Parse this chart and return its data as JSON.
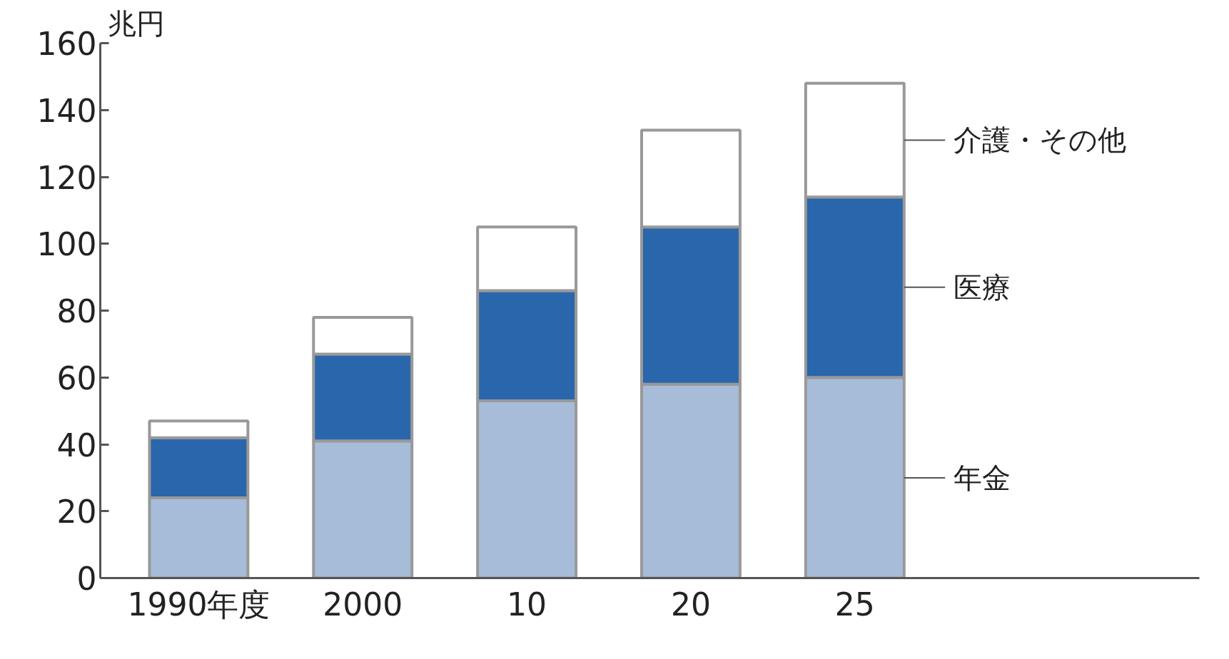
{
  "chart_data": {
    "type": "bar",
    "stacked": true,
    "ylabel": "兆円",
    "categories": [
      "1990年度",
      "2000",
      "10",
      "20",
      "25"
    ],
    "series": [
      {
        "name": "年金",
        "color": "#a7bcd8",
        "values": [
          24,
          41,
          53,
          58,
          60
        ]
      },
      {
        "name": "医療",
        "color": "#2a66ab",
        "values": [
          18,
          26,
          33,
          47,
          54
        ]
      },
      {
        "name": "介護・その他",
        "color": "#ffffff",
        "values": [
          5,
          11,
          19,
          29,
          34
        ]
      }
    ],
    "ylim": [
      0,
      160
    ],
    "yticks": [
      0,
      20,
      40,
      60,
      80,
      100,
      120,
      140,
      160
    ],
    "grid": false
  }
}
